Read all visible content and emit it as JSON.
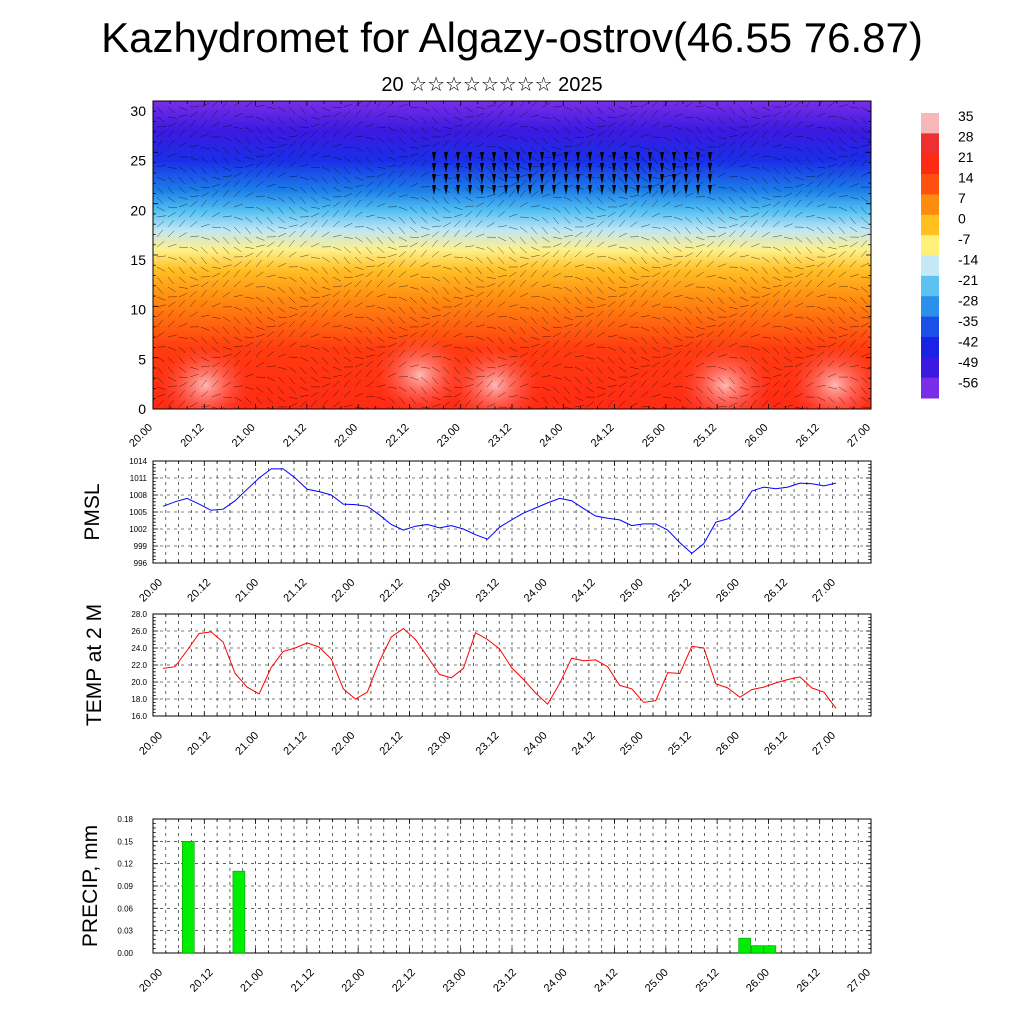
{
  "header": {
    "title": "Kazhydromet for Algazy-ostrov(46.55 76.87)",
    "subtitle": "20 ☆☆☆☆☆☆☆☆ 2025"
  },
  "chart_data": [
    {
      "type": "heatmap",
      "name": "vertical-temperature-wind-cross-section",
      "x_ticks": [
        "20.00",
        "20.12",
        "21.00",
        "21.12",
        "22.00",
        "22.12",
        "23.00",
        "23.12",
        "24.00",
        "24.12",
        "25.00",
        "25.12",
        "26.00",
        "26.12",
        "27.00"
      ],
      "y_ticks": [
        0,
        5,
        10,
        15,
        20,
        25,
        30
      ],
      "ylim": [
        0,
        31
      ],
      "colorbar_labels": [
        "35",
        "28",
        "21",
        "14",
        "7",
        "0",
        "-7",
        "-14",
        "-21",
        "-28",
        "-35",
        "-42",
        "-49",
        "-56"
      ],
      "colors": {
        "stops": [
          "#ff2a14",
          "#ff3b10",
          "#ff8a10",
          "#ffbf26",
          "#fff08a",
          "#bfe6f5",
          "#52bff2",
          "#1c7fe8",
          "#1a2ee8",
          "#3a1ae0",
          "#7a2de8"
        ],
        "stop_levels": [
          0,
          6,
          11,
          14,
          16,
          18,
          20,
          22,
          25,
          28,
          31
        ]
      }
    },
    {
      "type": "line",
      "name": "pmsl",
      "ylabel": "PMSL",
      "ylim": [
        996,
        1014
      ],
      "y_ticks": [
        "996",
        "999",
        "1002",
        "1005",
        "1008",
        "1011",
        "1014"
      ],
      "x_ticks": [
        "20.00",
        "20.12",
        "21.00",
        "21.12",
        "22.00",
        "22.12",
        "23.00",
        "23.12",
        "24.00",
        "24.12",
        "25.00",
        "25.12",
        "26.00",
        "26.12",
        "27.00"
      ],
      "color": "#0000ff",
      "x": [
        0,
        3,
        6,
        9,
        12,
        15,
        18,
        21,
        24,
        27,
        30,
        33,
        36,
        39,
        42,
        45,
        48,
        51,
        54,
        57,
        60,
        63,
        66,
        69,
        72,
        75,
        78,
        81,
        84,
        87,
        90,
        93,
        96,
        99,
        102,
        105,
        108,
        111,
        114,
        117,
        120,
        123,
        126,
        129,
        132,
        135,
        138,
        141,
        144,
        147,
        150,
        153,
        156,
        159,
        162,
        165,
        168
      ],
      "values": [
        1006.0,
        1006.8,
        1007.4,
        1006.4,
        1005.3,
        1005.5,
        1007.0,
        1009.0,
        1011.0,
        1012.6,
        1012.6,
        1011.0,
        1009.0,
        1008.6,
        1008.0,
        1006.4,
        1006.3,
        1006.0,
        1004.5,
        1002.8,
        1001.8,
        1002.5,
        1002.8,
        1002.2,
        1002.6,
        1002.0,
        1001.0,
        1000.2,
        1002.3,
        1003.6,
        1004.8,
        1005.7,
        1006.6,
        1007.4,
        1007.0,
        1005.6,
        1004.3,
        1003.9,
        1003.6,
        1002.6,
        1002.9,
        1002.9,
        1001.8,
        999.6,
        997.7,
        999.4,
        1003.2,
        1003.8,
        1005.5,
        1008.7,
        1009.4,
        1009.1,
        1009.4,
        1010.1,
        1010.0,
        1009.6,
        1010.1
      ]
    },
    {
      "type": "line",
      "name": "temp-2m",
      "ylabel": "TEMP at 2 M",
      "ylim": [
        16,
        28
      ],
      "y_ticks": [
        "16.0",
        "18.0",
        "20.0",
        "22.0",
        "24.0",
        "26.0",
        "28.0"
      ],
      "x_ticks": [
        "20.00",
        "20.12",
        "21.00",
        "21.12",
        "22.00",
        "22.12",
        "23.00",
        "23.12",
        "24.00",
        "24.12",
        "25.00",
        "25.12",
        "26.00",
        "26.12",
        "27.00"
      ],
      "color": "#ff0000",
      "x": [
        0,
        3,
        6,
        9,
        12,
        15,
        18,
        21,
        24,
        27,
        30,
        33,
        36,
        39,
        42,
        45,
        48,
        51,
        54,
        57,
        60,
        63,
        66,
        69,
        72,
        75,
        78,
        81,
        84,
        87,
        90,
        93,
        96,
        99,
        102,
        105,
        108,
        111,
        114,
        117,
        120,
        123,
        126,
        129,
        132,
        135,
        138,
        141,
        144,
        147,
        150,
        153,
        156,
        159,
        162,
        165,
        168
      ],
      "values": [
        21.6,
        21.8,
        23.7,
        25.7,
        25.9,
        24.7,
        21.0,
        19.4,
        18.6,
        21.7,
        23.6,
        24.0,
        24.6,
        24.1,
        22.7,
        19.2,
        18.0,
        18.8,
        22.4,
        25.3,
        26.3,
        25.0,
        23.0,
        20.9,
        20.5,
        21.6,
        25.8,
        25.0,
        23.9,
        21.7,
        20.3,
        18.7,
        17.4,
        19.8,
        22.8,
        22.5,
        22.6,
        21.8,
        19.6,
        19.2,
        17.6,
        17.8,
        21.1,
        21.0,
        24.2,
        24.0,
        19.8,
        19.3,
        18.2,
        19.1,
        19.4,
        19.9,
        20.3,
        20.6,
        19.3,
        18.8,
        16.9
      ]
    },
    {
      "type": "bar",
      "name": "precip",
      "ylabel": "PRECIP, mm",
      "ylim": [
        0,
        0.18
      ],
      "y_ticks": [
        "0.00",
        "0.03",
        "0.06",
        "0.09",
        "0.12",
        "0.15",
        "0.18"
      ],
      "x_ticks": [
        "20.00",
        "20.12",
        "21.00",
        "21.12",
        "22.00",
        "22.12",
        "23.00",
        "23.12",
        "24.00",
        "24.12",
        "25.00",
        "25.12",
        "26.00",
        "26.12",
        "27.00"
      ],
      "color": "#00ee00",
      "x": [
        6,
        18,
        138,
        141,
        144
      ],
      "values": [
        0.15,
        0.11,
        0.02,
        0.01,
        0.01
      ]
    }
  ]
}
